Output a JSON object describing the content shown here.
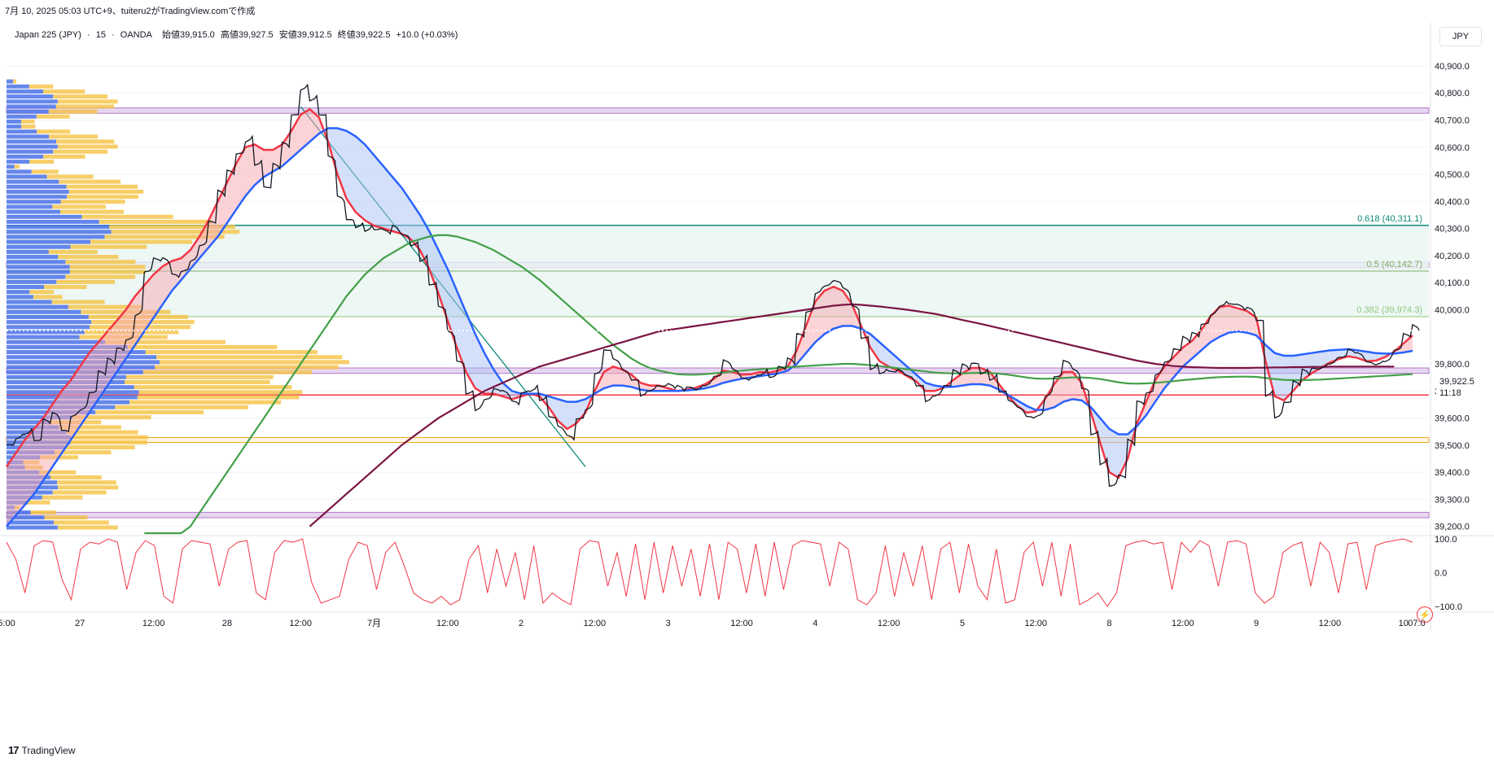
{
  "topline": "7月 10, 2025 05:03 UTC+9、tuiteru2がTradingView.comで作成",
  "header": {
    "symbol": "Japan 225 (JPY)",
    "interval": "15",
    "source": "OANDA",
    "open": "始値39,915.0",
    "high": "高値39,927.5",
    "low": "安値39,912.5",
    "close": "終値39,922.5",
    "change": "+10.0 (+0.03%)"
  },
  "currency_button": "JPY",
  "last_price": {
    "value": "39,922.5",
    "countdown": "11:18"
  },
  "footer": "TradingView",
  "colors": {
    "fast_ma": "#f23645",
    "mid_ma": "#2962ff",
    "slow_ma": "#43a047",
    "long_ma": "#7b1442",
    "fib_line": "#0c8a7a",
    "zone": "#b07cc6",
    "support": "#f23645",
    "orange_zone": "#f5a623",
    "vp_blue": "#4a72e8",
    "vp_yellow": "#f5c242"
  },
  "chart_data": {
    "type": "line",
    "title": "",
    "price_axis": {
      "ticks": [
        40900,
        40800,
        40700,
        40600,
        40500,
        40400,
        40300,
        40200,
        40100,
        40000,
        39800,
        39700,
        39600,
        39500,
        39400,
        39300,
        39200
      ],
      "tick_labels": [
        "40,900.0",
        "40,800.0",
        "40,700.0",
        "40,600.0",
        "40,500.0",
        "40,400.0",
        "40,300.0",
        "40,200.0",
        "40,100.0",
        "40,000.0",
        "39,800.0",
        "39,700.0",
        "39,600.0",
        "39,500.0",
        "39,400.0",
        "39,300.0",
        "39,200.0"
      ],
      "range": [
        39175,
        40975
      ]
    },
    "time_axis": {
      "labels": [
        "5:00",
        "27",
        "12:00",
        "28",
        "12:00",
        "7月",
        "12:00",
        "2",
        "12:00",
        "3",
        "12:00",
        "4",
        "12:00",
        "5",
        "12:00",
        "8",
        "12:00",
        "9",
        "12:00",
        "10",
        "07:0"
      ],
      "index": [
        0,
        8,
        16,
        24,
        32,
        40,
        48,
        56,
        64,
        72,
        80,
        88,
        96,
        104,
        112,
        120,
        128,
        136,
        144,
        152,
        156
      ]
    },
    "fibonacci": [
      {
        "level": "0.618",
        "price": 40311.1,
        "label": "0.618 (40,311.1)"
      },
      {
        "level": "0.5",
        "price": 40142.7,
        "label": "0.5 (40,142.7)"
      },
      {
        "level": "0.382",
        "price": 39974.3,
        "label": "0.382 (39,974.3)"
      }
    ],
    "zones": [
      {
        "from": 40725,
        "to": 40745,
        "kind": "purple"
      },
      {
        "from": 40155,
        "to": 40175,
        "kind": "purple"
      },
      {
        "from": 39765,
        "to": 39785,
        "kind": "purple"
      },
      {
        "from": 39232,
        "to": 39252,
        "kind": "purple"
      },
      {
        "from": 39510,
        "to": 39528,
        "kind": "orange"
      }
    ],
    "support_line": 39685,
    "trendline": {
      "from": {
        "i": 32,
        "p": 40750
      },
      "to": {
        "i": 63,
        "p": 39420
      }
    },
    "close": [
      39500,
      39540,
      39560,
      39520,
      39580,
      39600,
      39550,
      39620,
      39650,
      39700,
      39760,
      39800,
      39850,
      39900,
      40000,
      40150,
      40180,
      40170,
      40120,
      40150,
      40200,
      40250,
      40320,
      40420,
      40500,
      40580,
      40640,
      40550,
      40450,
      40520,
      40600,
      40720,
      40830,
      40790,
      40720,
      40550,
      40400,
      40330,
      40320,
      40310,
      40300,
      40280,
      40290,
      40270,
      40250,
      40200,
      40100,
      40000,
      39900,
      39800,
      39700,
      39650,
      39680,
      39700,
      39680,
      39650,
      39700,
      39720,
      39680,
      39600,
      39550,
      39520,
      39600,
      39650,
      39780,
      39850,
      39800,
      39760,
      39740,
      39700,
      39720,
      39720,
      39710,
      39700,
      39710,
      39720,
      39740,
      39760,
      39800,
      39760,
      39740,
      39760,
      39780,
      39760,
      39780,
      39800,
      39900,
      40000,
      40080,
      40100,
      40100,
      40060,
      40000,
      39900,
      39800,
      39780,
      39770,
      39760,
      39740,
      39720,
      39680,
      39700,
      39720,
      39760,
      39780,
      39800,
      39780,
      39760,
      39700,
      39650,
      39620,
      39600,
      39620,
      39700,
      39760,
      39800,
      39760,
      39700,
      39550,
      39450,
      39360,
      39380,
      39500,
      39650,
      39700,
      39780,
      39820,
      39850,
      39880,
      39900,
      39950,
      40000,
      40030,
      40020,
      40000,
      39990,
      39960,
      39700,
      39620,
      39660,
      39720,
      39760,
      39780,
      39800,
      39820,
      39830,
      39840,
      39820,
      39800,
      39810,
      39830,
      39860,
      39900,
      39922.5
    ],
    "series": [
      {
        "name": "",
        "key": "ma_fast",
        "color": "#f23645",
        "values": [
          39420,
          39470,
          39520,
          39560,
          39600,
          39650,
          39700,
          39740,
          39790,
          39840,
          39880,
          39920,
          39960,
          40000,
          40050,
          40090,
          40130,
          40160,
          40180,
          40190,
          40220,
          40270,
          40330,
          40400,
          40470,
          40540,
          40600,
          40610,
          40590,
          40590,
          40610,
          40660,
          40720,
          40740,
          40710,
          40620,
          40500,
          40410,
          40360,
          40330,
          40310,
          40300,
          40290,
          40280,
          40260,
          40220,
          40150,
          40060,
          39960,
          39860,
          39770,
          39710,
          39690,
          39690,
          39680,
          39670,
          39680,
          39690,
          39680,
          39640,
          39590,
          39560,
          39580,
          39620,
          39700,
          39770,
          39790,
          39780,
          39760,
          39730,
          39720,
          39720,
          39710,
          39700,
          39705,
          39712,
          39725,
          39745,
          39775,
          39770,
          39760,
          39762,
          39770,
          39768,
          39775,
          39790,
          39850,
          39940,
          40030,
          40070,
          40085,
          40070,
          40020,
          39940,
          39860,
          39810,
          39790,
          39775,
          39755,
          39735,
          39700,
          39700,
          39712,
          39740,
          39765,
          39785,
          39785,
          39770,
          39725,
          39680,
          39645,
          39620,
          39625,
          39670,
          39725,
          39770,
          39770,
          39730,
          39620,
          39510,
          39400,
          39380,
          39450,
          39580,
          39660,
          39740,
          39790,
          39825,
          39860,
          39885,
          39925,
          39975,
          40010,
          40015,
          40005,
          39995,
          39970,
          39810,
          39680,
          39665,
          39700,
          39740,
          39765,
          39785,
          39805,
          39818,
          39828,
          39822,
          39810,
          39812,
          39825,
          39845,
          39875,
          39905
        ]
      },
      {
        "name": "",
        "key": "ma_mid",
        "color": "#2962ff",
        "values": [
          39200,
          39240,
          39280,
          39320,
          39370,
          39420,
          39470,
          39520,
          39570,
          39620,
          39670,
          39720,
          39770,
          39820,
          39870,
          39920,
          39970,
          40020,
          40070,
          40110,
          40150,
          40190,
          40230,
          40270,
          40320,
          40370,
          40420,
          40460,
          40490,
          40510,
          40530,
          40560,
          40590,
          40620,
          40650,
          40670,
          40670,
          40660,
          40640,
          40610,
          40570,
          40530,
          40490,
          40450,
          40400,
          40350,
          40290,
          40220,
          40150,
          40070,
          39990,
          39910,
          39840,
          39780,
          39730,
          39700,
          39690,
          39690,
          39690,
          39680,
          39670,
          39660,
          39660,
          39670,
          39690,
          39710,
          39720,
          39720,
          39715,
          39705,
          39700,
          39700,
          39700,
          39700,
          39702,
          39705,
          39710,
          39718,
          39730,
          39738,
          39745,
          39750,
          39755,
          39760,
          39765,
          39775,
          39800,
          39840,
          39880,
          39910,
          39930,
          39940,
          39940,
          39930,
          39910,
          39880,
          39850,
          39820,
          39790,
          39760,
          39730,
          39720,
          39715,
          39715,
          39720,
          39725,
          39725,
          39720,
          39705,
          39685,
          39665,
          39645,
          39630,
          39630,
          39640,
          39660,
          39670,
          39665,
          39640,
          39600,
          39560,
          39540,
          39540,
          39570,
          39610,
          39660,
          39710,
          39750,
          39790,
          39820,
          39850,
          39880,
          39900,
          39915,
          39920,
          39915,
          39905,
          39870,
          39840,
          39830,
          39830,
          39835,
          39840,
          39845,
          39850,
          39852,
          39854,
          39850,
          39845,
          39840,
          39838,
          39838,
          39842,
          39848
        ]
      },
      {
        "name": "",
        "key": "ma_slow",
        "color": "#43a047",
        "values": [
          null,
          null,
          null,
          null,
          null,
          null,
          null,
          null,
          null,
          null,
          null,
          null,
          null,
          null,
          null,
          38950,
          39000,
          39050,
          39100,
          39150,
          39200,
          39250,
          39300,
          39350,
          39400,
          39450,
          39500,
          39550,
          39600,
          39650,
          39700,
          39750,
          39800,
          39850,
          39900,
          39950,
          40000,
          40050,
          40090,
          40130,
          40160,
          40190,
          40210,
          40230,
          40250,
          40260,
          40270,
          40275,
          40275,
          40270,
          40260,
          40250,
          40235,
          40220,
          40200,
          40180,
          40160,
          40135,
          40110,
          40080,
          40050,
          40020,
          39990,
          39960,
          39930,
          39900,
          39870,
          39845,
          39820,
          39800,
          39785,
          39775,
          39768,
          39762,
          39760,
          39760,
          39762,
          39765,
          39768,
          39772,
          39775,
          39778,
          39780,
          39782,
          39785,
          39788,
          39790,
          39792,
          39794,
          39796,
          39798,
          39800,
          39800,
          39798,
          39795,
          39792,
          39788,
          39784,
          39780,
          39776,
          39772,
          39768,
          39766,
          39765,
          39765,
          39766,
          39767,
          39766,
          39764,
          39760,
          39755,
          39750,
          39746,
          39745,
          39746,
          39748,
          39750,
          39750,
          39748,
          39744,
          39738,
          39732,
          39728,
          39727,
          39728,
          39730,
          39733,
          39736,
          39740,
          39743,
          39746,
          39749,
          39751,
          39752,
          39753,
          39753,
          39752,
          39748,
          39744,
          39741,
          39740,
          39740,
          39741,
          39742,
          39744,
          39746,
          39748,
          39750,
          39752,
          39754,
          39756,
          39758,
          39760,
          39762
        ]
      },
      {
        "name": "",
        "key": "ma_long",
        "color": "#7b1442",
        "values": [
          null,
          null,
          null,
          null,
          null,
          null,
          null,
          null,
          null,
          null,
          null,
          null,
          null,
          null,
          null,
          null,
          null,
          null,
          null,
          null,
          null,
          null,
          null,
          null,
          null,
          null,
          null,
          null,
          null,
          null,
          null,
          null,
          null,
          39200,
          39230,
          39260,
          39290,
          39320,
          39350,
          39380,
          39410,
          39440,
          39470,
          39500,
          39525,
          39550,
          39575,
          39600,
          39620,
          39640,
          39660,
          39680,
          39700,
          39715,
          39730,
          39745,
          39760,
          39775,
          39790,
          39800,
          39810,
          39820,
          39830,
          39840,
          39850,
          39860,
          39870,
          39880,
          39890,
          39900,
          39910,
          39920,
          39925,
          39930,
          39935,
          39940,
          39945,
          39950,
          39955,
          39960,
          39965,
          39970,
          39975,
          39980,
          39985,
          39990,
          39995,
          40000,
          40005,
          40010,
          40015,
          40018,
          40020,
          40018,
          40015,
          40012,
          40008,
          40004,
          40000,
          39995,
          39990,
          39985,
          39978,
          39970,
          39962,
          39955,
          39948,
          39940,
          39932,
          39924,
          39916,
          39908,
          39900,
          39892,
          39884,
          39876,
          39868,
          39860,
          39852,
          39844,
          39836,
          39828,
          39820,
          39812,
          39806,
          39800,
          39796,
          39792,
          39790,
          39788,
          39787,
          39786,
          39785,
          39785,
          39785,
          39785,
          39786,
          39786,
          39787,
          39787,
          39788,
          39788,
          39789,
          39789,
          39790,
          39790,
          39790,
          39790,
          39790,
          39790,
          39790,
          39790
        ]
      }
    ],
    "oscillator": {
      "ticks": [
        100,
        0,
        -100
      ],
      "tick_labels": [
        "100.0",
        "0.0",
        "−100.0"
      ],
      "values": [
        90,
        40,
        -60,
        80,
        95,
        90,
        -20,
        -80,
        70,
        90,
        85,
        100,
        90,
        -50,
        60,
        95,
        80,
        -70,
        -90,
        70,
        95,
        90,
        85,
        -40,
        70,
        90,
        95,
        -60,
        -80,
        60,
        95,
        90,
        100,
        -30,
        -90,
        -80,
        -70,
        40,
        90,
        80,
        -50,
        60,
        90,
        20,
        -60,
        -80,
        -90,
        -70,
        -95,
        -80,
        40,
        80,
        -60,
        70,
        -40,
        60,
        -80,
        80,
        -90,
        -60,
        -80,
        -95,
        70,
        95,
        90,
        -40,
        60,
        -70,
        85,
        -80,
        90,
        -60,
        80,
        -40,
        70,
        -70,
        85,
        -80,
        90,
        70,
        -60,
        85,
        -70,
        90,
        -50,
        80,
        95,
        90,
        85,
        -40,
        90,
        70,
        -80,
        -95,
        -60,
        80,
        -70,
        60,
        -40,
        80,
        -80,
        70,
        90,
        -60,
        85,
        -40,
        -80,
        70,
        -90,
        -80,
        60,
        90,
        -40,
        90,
        -70,
        85,
        -95,
        -80,
        -60,
        -100,
        -60,
        80,
        90,
        95,
        85,
        90,
        -50,
        90,
        60,
        95,
        80,
        -40,
        90,
        95,
        85,
        -60,
        -90,
        -70,
        60,
        80,
        90,
        -40,
        90,
        60,
        -60,
        85,
        90,
        -50,
        80,
        90,
        95,
        100,
        90
      ]
    }
  }
}
